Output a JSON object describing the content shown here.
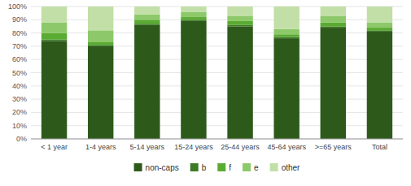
{
  "chart_data": {
    "type": "bar",
    "stacked": true,
    "grid": true,
    "legend": "bottom",
    "categories": [
      "< 1 year",
      "1-4 years",
      "5-14 years",
      "15-24 years",
      "25-44 years",
      "45-64 years",
      ">=65 years",
      "Total"
    ],
    "series": [
      {
        "name": "non-caps",
        "color": "#2d5a1b",
        "values": [
          74,
          70,
          86,
          89,
          85,
          76,
          84,
          81
        ]
      },
      {
        "name": "b",
        "color": "#3d7a25",
        "values": [
          1,
          1,
          1,
          1,
          1,
          1,
          1,
          1
        ]
      },
      {
        "name": "f",
        "color": "#5aab32",
        "values": [
          5,
          2,
          3,
          2,
          3,
          2,
          3,
          2
        ]
      },
      {
        "name": "e",
        "color": "#8dc96a",
        "values": [
          8,
          9,
          4,
          4,
          4,
          4,
          5,
          4
        ]
      },
      {
        "name": "other",
        "color": "#c2dfa8",
        "values": [
          12,
          18,
          6,
          4,
          7,
          17,
          7,
          12
        ]
      }
    ],
    "ylim": [
      0,
      100
    ],
    "yticks": [
      {
        "value": 0,
        "label": "0%"
      },
      {
        "value": 10,
        "label": "10%"
      },
      {
        "value": 20,
        "label": "20%"
      },
      {
        "value": 30,
        "label": "30%"
      },
      {
        "value": 40,
        "label": "40%"
      },
      {
        "value": 50,
        "label": "50%"
      },
      {
        "value": 60,
        "label": "60%"
      },
      {
        "value": 70,
        "label": "70%"
      },
      {
        "value": 80,
        "label": "80%"
      },
      {
        "value": 90,
        "label": "90%"
      },
      {
        "value": 100,
        "label": "100%"
      }
    ]
  }
}
